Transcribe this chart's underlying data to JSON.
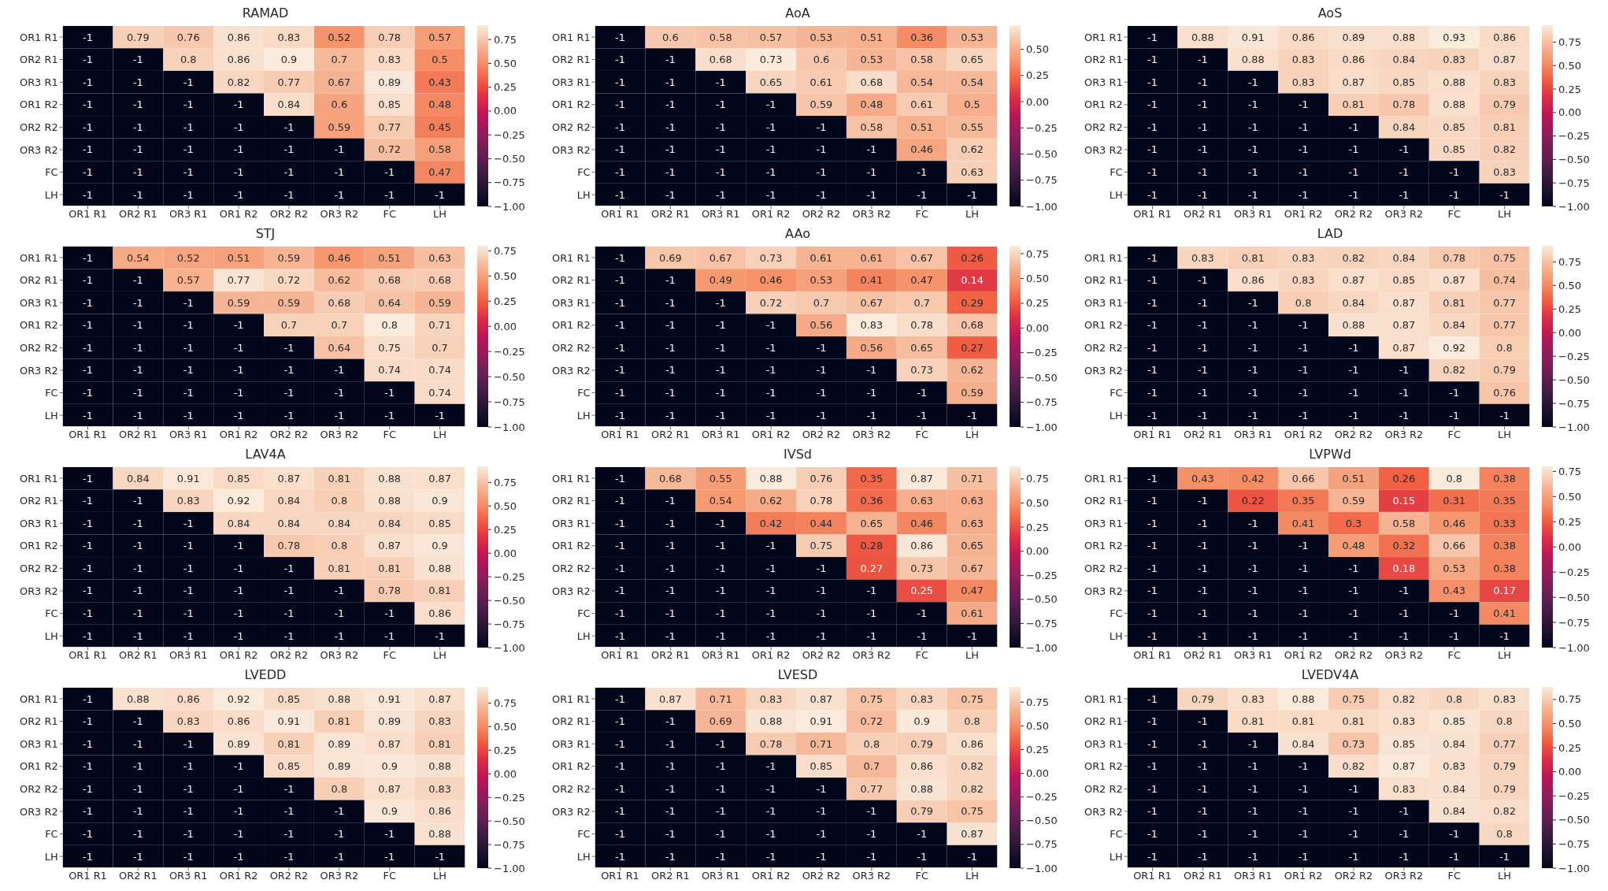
{
  "chart_data": [
    {
      "type": "heatmap",
      "data_labels": true,
      "title": "RAMAD",
      "categories": [
        "OR1 R1",
        "OR2 R1",
        "OR3 R1",
        "OR1 R2",
        "OR2 R2",
        "OR3 R2",
        "FC",
        "LH"
      ],
      "y_categories": [
        "OR1 R1",
        "OR2 R1",
        "OR3 R1",
        "OR1 R2",
        "OR2 R2",
        "OR3 R2",
        "FC",
        "LH"
      ],
      "clim": [
        -1,
        0.9
      ],
      "cticks": [
        {
          "value": -1,
          "label": "−1.00"
        },
        {
          "value": -0.75,
          "label": "−0.75"
        },
        {
          "value": -0.5,
          "label": "−0.50"
        },
        {
          "value": -0.25,
          "label": "−0.25"
        },
        {
          "value": 0,
          "label": "0.00"
        },
        {
          "value": 0.25,
          "label": "0.25"
        },
        {
          "value": 0.5,
          "label": "0.50"
        },
        {
          "value": 0.75,
          "label": "0.75"
        }
      ],
      "cells": [
        [
          -1,
          0.79,
          0.76,
          0.86,
          0.83,
          0.52,
          0.78,
          0.57
        ],
        [
          -1,
          -1,
          0.8,
          0.86,
          0.9,
          0.7,
          0.83,
          0.5
        ],
        [
          -1,
          -1,
          -1,
          0.82,
          0.77,
          0.67,
          0.89,
          0.43
        ],
        [
          -1,
          -1,
          -1,
          -1,
          0.84,
          0.6,
          0.85,
          0.48
        ],
        [
          -1,
          -1,
          -1,
          -1,
          -1,
          0.59,
          0.77,
          0.45
        ],
        [
          -1,
          -1,
          -1,
          -1,
          -1,
          -1,
          0.72,
          0.58
        ],
        [
          -1,
          -1,
          -1,
          -1,
          -1,
          -1,
          -1,
          0.47
        ],
        [
          -1,
          -1,
          -1,
          -1,
          -1,
          -1,
          -1,
          -1
        ]
      ]
    },
    {
      "type": "heatmap",
      "data_labels": true,
      "title": "AoA",
      "categories": [
        "OR1 R1",
        "OR2 R1",
        "OR3 R1",
        "OR1 R2",
        "OR2 R2",
        "OR3 R2",
        "FC",
        "LH"
      ],
      "y_categories": [
        "OR1 R1",
        "OR2 R1",
        "OR3 R1",
        "OR1 R2",
        "OR2 R2",
        "OR3 R2",
        "FC",
        "LH"
      ],
      "clim": [
        -1,
        0.73
      ],
      "cticks": [
        {
          "value": -1,
          "label": "−1.00"
        },
        {
          "value": -0.75,
          "label": "−0.75"
        },
        {
          "value": -0.5,
          "label": "−0.50"
        },
        {
          "value": -0.25,
          "label": "−0.25"
        },
        {
          "value": 0,
          "label": "0.00"
        },
        {
          "value": 0.25,
          "label": "0.25"
        },
        {
          "value": 0.5,
          "label": "0.50"
        }
      ],
      "cells": [
        [
          -1,
          0.6,
          0.58,
          0.57,
          0.53,
          0.51,
          0.36,
          0.53
        ],
        [
          -1,
          -1,
          0.68,
          0.73,
          0.6,
          0.53,
          0.58,
          0.65
        ],
        [
          -1,
          -1,
          -1,
          0.65,
          0.61,
          0.68,
          0.54,
          0.54
        ],
        [
          -1,
          -1,
          -1,
          -1,
          0.59,
          0.48,
          0.61,
          0.5
        ],
        [
          -1,
          -1,
          -1,
          -1,
          -1,
          0.58,
          0.51,
          0.55
        ],
        [
          -1,
          -1,
          -1,
          -1,
          -1,
          -1,
          0.46,
          0.62
        ],
        [
          -1,
          -1,
          -1,
          -1,
          -1,
          -1,
          -1,
          0.63
        ],
        [
          -1,
          -1,
          -1,
          -1,
          -1,
          -1,
          -1,
          -1
        ]
      ]
    },
    {
      "type": "heatmap",
      "data_labels": true,
      "title": "AoS",
      "categories": [
        "OR1 R1",
        "OR2 R1",
        "OR3 R1",
        "OR1 R2",
        "OR2 R2",
        "OR3 R2",
        "FC",
        "LH"
      ],
      "y_categories": [
        "OR1 R1",
        "OR2 R1",
        "OR3 R1",
        "OR1 R2",
        "OR2 R2",
        "OR3 R2",
        "FC",
        "LH"
      ],
      "clim": [
        -1,
        0.93
      ],
      "cticks": [
        {
          "value": -1,
          "label": "−1.00"
        },
        {
          "value": -0.75,
          "label": "−0.75"
        },
        {
          "value": -0.5,
          "label": "−0.50"
        },
        {
          "value": -0.25,
          "label": "−0.25"
        },
        {
          "value": 0,
          "label": "0.00"
        },
        {
          "value": 0.25,
          "label": "0.25"
        },
        {
          "value": 0.5,
          "label": "0.50"
        },
        {
          "value": 0.75,
          "label": "0.75"
        }
      ],
      "cells": [
        [
          -1,
          0.88,
          0.91,
          0.86,
          0.89,
          0.88,
          0.93,
          0.86
        ],
        [
          -1,
          -1,
          0.88,
          0.83,
          0.86,
          0.84,
          0.83,
          0.87
        ],
        [
          -1,
          -1,
          -1,
          0.83,
          0.87,
          0.85,
          0.88,
          0.83
        ],
        [
          -1,
          -1,
          -1,
          -1,
          0.81,
          0.78,
          0.88,
          0.79
        ],
        [
          -1,
          -1,
          -1,
          -1,
          -1,
          0.84,
          0.85,
          0.81
        ],
        [
          -1,
          -1,
          -1,
          -1,
          -1,
          -1,
          0.85,
          0.82
        ],
        [
          -1,
          -1,
          -1,
          -1,
          -1,
          -1,
          -1,
          0.83
        ],
        [
          -1,
          -1,
          -1,
          -1,
          -1,
          -1,
          -1,
          -1
        ]
      ]
    },
    {
      "type": "heatmap",
      "data_labels": true,
      "title": "STJ",
      "categories": [
        "OR1 R1",
        "OR2 R1",
        "OR3 R1",
        "OR1 R2",
        "OR2 R2",
        "OR3 R2",
        "FC",
        "LH"
      ],
      "y_categories": [
        "OR1 R1",
        "OR2 R1",
        "OR3 R1",
        "OR1 R2",
        "OR2 R2",
        "OR3 R2",
        "FC",
        "LH"
      ],
      "clim": [
        -1,
        0.8
      ],
      "cticks": [
        {
          "value": -1,
          "label": "−1.00"
        },
        {
          "value": -0.75,
          "label": "−0.75"
        },
        {
          "value": -0.5,
          "label": "−0.50"
        },
        {
          "value": -0.25,
          "label": "−0.25"
        },
        {
          "value": 0,
          "label": "0.00"
        },
        {
          "value": 0.25,
          "label": "0.25"
        },
        {
          "value": 0.5,
          "label": "0.50"
        },
        {
          "value": 0.75,
          "label": "0.75"
        }
      ],
      "cells": [
        [
          -1,
          0.54,
          0.52,
          0.51,
          0.59,
          0.46,
          0.51,
          0.63
        ],
        [
          -1,
          -1,
          0.57,
          0.77,
          0.72,
          0.62,
          0.68,
          0.68
        ],
        [
          -1,
          -1,
          -1,
          0.59,
          0.59,
          0.68,
          0.64,
          0.59
        ],
        [
          -1,
          -1,
          -1,
          -1,
          0.7,
          0.7,
          0.8,
          0.71
        ],
        [
          -1,
          -1,
          -1,
          -1,
          -1,
          0.64,
          0.75,
          0.7
        ],
        [
          -1,
          -1,
          -1,
          -1,
          -1,
          -1,
          0.74,
          0.74
        ],
        [
          -1,
          -1,
          -1,
          -1,
          -1,
          -1,
          -1,
          0.74
        ],
        [
          -1,
          -1,
          -1,
          -1,
          -1,
          -1,
          -1,
          -1
        ]
      ]
    },
    {
      "type": "heatmap",
      "data_labels": true,
      "title": "AAo",
      "categories": [
        "OR1 R1",
        "OR2 R1",
        "OR3 R1",
        "OR1 R2",
        "OR2 R2",
        "OR3 R2",
        "FC",
        "LH"
      ],
      "y_categories": [
        "OR1 R1",
        "OR2 R1",
        "OR3 R1",
        "OR1 R2",
        "OR2 R2",
        "OR3 R2",
        "FC",
        "LH"
      ],
      "clim": [
        -1,
        0.83
      ],
      "cticks": [
        {
          "value": -1,
          "label": "−1.00"
        },
        {
          "value": -0.75,
          "label": "−0.75"
        },
        {
          "value": -0.5,
          "label": "−0.50"
        },
        {
          "value": -0.25,
          "label": "−0.25"
        },
        {
          "value": 0,
          "label": "0.00"
        },
        {
          "value": 0.25,
          "label": "0.25"
        },
        {
          "value": 0.5,
          "label": "0.50"
        },
        {
          "value": 0.75,
          "label": "0.75"
        }
      ],
      "cells": [
        [
          -1,
          0.69,
          0.67,
          0.73,
          0.61,
          0.61,
          0.67,
          0.26
        ],
        [
          -1,
          -1,
          0.49,
          0.46,
          0.53,
          0.41,
          0.47,
          0.14
        ],
        [
          -1,
          -1,
          -1,
          0.72,
          0.7,
          0.67,
          0.7,
          0.29
        ],
        [
          -1,
          -1,
          -1,
          -1,
          0.56,
          0.83,
          0.78,
          0.68
        ],
        [
          -1,
          -1,
          -1,
          -1,
          -1,
          0.56,
          0.65,
          0.27
        ],
        [
          -1,
          -1,
          -1,
          -1,
          -1,
          -1,
          0.73,
          0.62
        ],
        [
          -1,
          -1,
          -1,
          -1,
          -1,
          -1,
          -1,
          0.59
        ],
        [
          -1,
          -1,
          -1,
          -1,
          -1,
          -1,
          -1,
          -1
        ]
      ]
    },
    {
      "type": "heatmap",
      "data_labels": true,
      "title": "LAD",
      "categories": [
        "OR1 R1",
        "OR2 R1",
        "OR3 R1",
        "OR1 R2",
        "OR2 R2",
        "OR3 R2",
        "FC",
        "LH"
      ],
      "y_categories": [
        "OR1 R1",
        "OR2 R1",
        "OR3 R1",
        "OR1 R2",
        "OR2 R2",
        "OR3 R2",
        "FC",
        "LH"
      ],
      "clim": [
        -1,
        0.92
      ],
      "cticks": [
        {
          "value": -1,
          "label": "−1.00"
        },
        {
          "value": -0.75,
          "label": "−0.75"
        },
        {
          "value": -0.5,
          "label": "−0.50"
        },
        {
          "value": -0.25,
          "label": "−0.25"
        },
        {
          "value": 0,
          "label": "0.00"
        },
        {
          "value": 0.25,
          "label": "0.25"
        },
        {
          "value": 0.5,
          "label": "0.50"
        },
        {
          "value": 0.75,
          "label": "0.75"
        }
      ],
      "cells": [
        [
          -1,
          0.83,
          0.81,
          0.83,
          0.82,
          0.84,
          0.78,
          0.75
        ],
        [
          -1,
          -1,
          0.86,
          0.83,
          0.87,
          0.85,
          0.87,
          0.74
        ],
        [
          -1,
          -1,
          -1,
          0.8,
          0.84,
          0.87,
          0.81,
          0.77
        ],
        [
          -1,
          -1,
          -1,
          -1,
          0.88,
          0.87,
          0.84,
          0.77
        ],
        [
          -1,
          -1,
          -1,
          -1,
          -1,
          0.87,
          0.92,
          0.8
        ],
        [
          -1,
          -1,
          -1,
          -1,
          -1,
          -1,
          0.82,
          0.79
        ],
        [
          -1,
          -1,
          -1,
          -1,
          -1,
          -1,
          -1,
          0.76
        ],
        [
          -1,
          -1,
          -1,
          -1,
          -1,
          -1,
          -1,
          -1
        ]
      ]
    },
    {
      "type": "heatmap",
      "data_labels": true,
      "title": "LAV4A",
      "categories": [
        "OR1 R1",
        "OR2 R1",
        "OR3 R1",
        "OR1 R2",
        "OR2 R2",
        "OR3 R2",
        "FC",
        "LH"
      ],
      "y_categories": [
        "OR1 R1",
        "OR2 R1",
        "OR3 R1",
        "OR1 R2",
        "OR2 R2",
        "OR3 R2",
        "FC",
        "LH"
      ],
      "clim": [
        -1,
        0.92
      ],
      "cticks": [
        {
          "value": -1,
          "label": "−1.00"
        },
        {
          "value": -0.75,
          "label": "−0.75"
        },
        {
          "value": -0.5,
          "label": "−0.50"
        },
        {
          "value": -0.25,
          "label": "−0.25"
        },
        {
          "value": 0,
          "label": "0.00"
        },
        {
          "value": 0.25,
          "label": "0.25"
        },
        {
          "value": 0.5,
          "label": "0.50"
        },
        {
          "value": 0.75,
          "label": "0.75"
        }
      ],
      "cells": [
        [
          -1,
          0.84,
          0.91,
          0.85,
          0.87,
          0.81,
          0.88,
          0.87
        ],
        [
          -1,
          -1,
          0.83,
          0.92,
          0.84,
          0.8,
          0.88,
          0.9
        ],
        [
          -1,
          -1,
          -1,
          0.84,
          0.84,
          0.84,
          0.84,
          0.85
        ],
        [
          -1,
          -1,
          -1,
          -1,
          0.78,
          0.8,
          0.87,
          0.9
        ],
        [
          -1,
          -1,
          -1,
          -1,
          -1,
          0.81,
          0.81,
          0.88
        ],
        [
          -1,
          -1,
          -1,
          -1,
          -1,
          -1,
          0.78,
          0.81
        ],
        [
          -1,
          -1,
          -1,
          -1,
          -1,
          -1,
          -1,
          0.86
        ],
        [
          -1,
          -1,
          -1,
          -1,
          -1,
          -1,
          -1,
          -1
        ]
      ]
    },
    {
      "type": "heatmap",
      "data_labels": true,
      "title": "IVSd",
      "categories": [
        "OR1 R1",
        "OR2 R1",
        "OR3 R1",
        "OR1 R2",
        "OR2 R2",
        "OR3 R2",
        "FC",
        "LH"
      ],
      "y_categories": [
        "OR1 R1",
        "OR2 R1",
        "OR3 R1",
        "OR1 R2",
        "OR2 R2",
        "OR3 R2",
        "FC",
        "LH"
      ],
      "clim": [
        -1,
        0.88
      ],
      "cticks": [
        {
          "value": -1,
          "label": "−1.00"
        },
        {
          "value": -0.75,
          "label": "−0.75"
        },
        {
          "value": -0.5,
          "label": "−0.50"
        },
        {
          "value": -0.25,
          "label": "−0.25"
        },
        {
          "value": 0,
          "label": "0.00"
        },
        {
          "value": 0.25,
          "label": "0.25"
        },
        {
          "value": 0.5,
          "label": "0.50"
        },
        {
          "value": 0.75,
          "label": "0.75"
        }
      ],
      "cells": [
        [
          -1,
          0.68,
          0.55,
          0.88,
          0.76,
          0.35,
          0.87,
          0.71
        ],
        [
          -1,
          -1,
          0.54,
          0.62,
          0.78,
          0.36,
          0.63,
          0.63
        ],
        [
          -1,
          -1,
          -1,
          0.42,
          0.44,
          0.65,
          0.46,
          0.63
        ],
        [
          -1,
          -1,
          -1,
          -1,
          0.75,
          0.28,
          0.86,
          0.65
        ],
        [
          -1,
          -1,
          -1,
          -1,
          -1,
          0.27,
          0.73,
          0.67
        ],
        [
          -1,
          -1,
          -1,
          -1,
          -1,
          -1,
          0.25,
          0.47
        ],
        [
          -1,
          -1,
          -1,
          -1,
          -1,
          -1,
          -1,
          0.61
        ],
        [
          -1,
          -1,
          -1,
          -1,
          -1,
          -1,
          -1,
          -1
        ]
      ]
    },
    {
      "type": "heatmap",
      "data_labels": true,
      "title": "LVPWd",
      "categories": [
        "OR1 R1",
        "OR2 R1",
        "OR3 R1",
        "OR1 R2",
        "OR2 R2",
        "OR3 R2",
        "FC",
        "LH"
      ],
      "y_categories": [
        "OR1 R1",
        "OR2 R1",
        "OR3 R1",
        "OR1 R2",
        "OR2 R2",
        "OR3 R2",
        "FC",
        "LH"
      ],
      "clim": [
        -1,
        0.8
      ],
      "cticks": [
        {
          "value": -1,
          "label": "−1.00"
        },
        {
          "value": -0.75,
          "label": "−0.75"
        },
        {
          "value": -0.5,
          "label": "−0.50"
        },
        {
          "value": -0.25,
          "label": "−0.25"
        },
        {
          "value": 0,
          "label": "0.00"
        },
        {
          "value": 0.25,
          "label": "0.25"
        },
        {
          "value": 0.5,
          "label": "0.50"
        },
        {
          "value": 0.75,
          "label": "0.75"
        }
      ],
      "cells": [
        [
          -1,
          0.43,
          0.42,
          0.66,
          0.51,
          0.26,
          0.8,
          0.38
        ],
        [
          -1,
          -1,
          0.22,
          0.35,
          0.59,
          0.15,
          0.31,
          0.35
        ],
        [
          -1,
          -1,
          -1,
          0.41,
          0.3,
          0.58,
          0.46,
          0.33
        ],
        [
          -1,
          -1,
          -1,
          -1,
          0.48,
          0.32,
          0.66,
          0.38
        ],
        [
          -1,
          -1,
          -1,
          -1,
          -1,
          0.18,
          0.53,
          0.38
        ],
        [
          -1,
          -1,
          -1,
          -1,
          -1,
          -1,
          0.43,
          0.17
        ],
        [
          -1,
          -1,
          -1,
          -1,
          -1,
          -1,
          -1,
          0.41
        ],
        [
          -1,
          -1,
          -1,
          -1,
          -1,
          -1,
          -1,
          -1
        ]
      ]
    },
    {
      "type": "heatmap",
      "data_labels": true,
      "title": "LVEDD",
      "categories": [
        "OR1 R1",
        "OR2 R1",
        "OR3 R1",
        "OR1 R2",
        "OR2 R2",
        "OR3 R2",
        "FC",
        "LH"
      ],
      "y_categories": [
        "OR1 R1",
        "OR2 R1",
        "OR3 R1",
        "OR1 R2",
        "OR2 R2",
        "OR3 R2",
        "FC",
        "LH"
      ],
      "clim": [
        -1,
        0.92
      ],
      "cticks": [
        {
          "value": -1,
          "label": "−1.00"
        },
        {
          "value": -0.75,
          "label": "−0.75"
        },
        {
          "value": -0.5,
          "label": "−0.50"
        },
        {
          "value": -0.25,
          "label": "−0.25"
        },
        {
          "value": 0,
          "label": "0.00"
        },
        {
          "value": 0.25,
          "label": "0.25"
        },
        {
          "value": 0.5,
          "label": "0.50"
        },
        {
          "value": 0.75,
          "label": "0.75"
        }
      ],
      "cells": [
        [
          -1,
          0.88,
          0.86,
          0.92,
          0.85,
          0.88,
          0.91,
          0.87
        ],
        [
          -1,
          -1,
          0.83,
          0.86,
          0.91,
          0.81,
          0.89,
          0.83
        ],
        [
          -1,
          -1,
          -1,
          0.89,
          0.81,
          0.89,
          0.87,
          0.81
        ],
        [
          -1,
          -1,
          -1,
          -1,
          0.85,
          0.89,
          0.9,
          0.88
        ],
        [
          -1,
          -1,
          -1,
          -1,
          -1,
          0.8,
          0.87,
          0.83
        ],
        [
          -1,
          -1,
          -1,
          -1,
          -1,
          -1,
          0.9,
          0.86
        ],
        [
          -1,
          -1,
          -1,
          -1,
          -1,
          -1,
          -1,
          0.88
        ],
        [
          -1,
          -1,
          -1,
          -1,
          -1,
          -1,
          -1,
          -1
        ]
      ]
    },
    {
      "type": "heatmap",
      "data_labels": true,
      "title": "LVESD",
      "categories": [
        "OR1 R1",
        "OR2 R1",
        "OR3 R1",
        "OR1 R2",
        "OR2 R2",
        "OR3 R2",
        "FC",
        "LH"
      ],
      "y_categories": [
        "OR1 R1",
        "OR2 R1",
        "OR3 R1",
        "OR1 R2",
        "OR2 R2",
        "OR3 R2",
        "FC",
        "LH"
      ],
      "clim": [
        -1,
        0.91
      ],
      "cticks": [
        {
          "value": -1,
          "label": "−1.00"
        },
        {
          "value": -0.75,
          "label": "−0.75"
        },
        {
          "value": -0.5,
          "label": "−0.50"
        },
        {
          "value": -0.25,
          "label": "−0.25"
        },
        {
          "value": 0,
          "label": "0.00"
        },
        {
          "value": 0.25,
          "label": "0.25"
        },
        {
          "value": 0.5,
          "label": "0.50"
        },
        {
          "value": 0.75,
          "label": "0.75"
        }
      ],
      "cells": [
        [
          -1,
          0.87,
          0.71,
          0.83,
          0.87,
          0.75,
          0.83,
          0.75
        ],
        [
          -1,
          -1,
          0.69,
          0.88,
          0.91,
          0.72,
          0.9,
          0.8
        ],
        [
          -1,
          -1,
          -1,
          0.78,
          0.71,
          0.8,
          0.79,
          0.86
        ],
        [
          -1,
          -1,
          -1,
          -1,
          0.85,
          0.7,
          0.86,
          0.82
        ],
        [
          -1,
          -1,
          -1,
          -1,
          -1,
          0.77,
          0.88,
          0.82
        ],
        [
          -1,
          -1,
          -1,
          -1,
          -1,
          -1,
          0.79,
          0.75
        ],
        [
          -1,
          -1,
          -1,
          -1,
          -1,
          -1,
          -1,
          0.87
        ],
        [
          -1,
          -1,
          -1,
          -1,
          -1,
          -1,
          -1,
          -1
        ]
      ]
    },
    {
      "type": "heatmap",
      "data_labels": true,
      "title": "LVEDV4A",
      "categories": [
        "OR1 R1",
        "OR2 R1",
        "OR3 R1",
        "OR1 R2",
        "OR2 R2",
        "OR3 R2",
        "FC",
        "LH"
      ],
      "y_categories": [
        "OR1 R1",
        "OR2 R1",
        "OR3 R1",
        "OR1 R2",
        "OR2 R2",
        "OR3 R2",
        "FC",
        "LH"
      ],
      "clim": [
        -1,
        0.88
      ],
      "cticks": [
        {
          "value": -1,
          "label": "−1.00"
        },
        {
          "value": -0.75,
          "label": "−0.75"
        },
        {
          "value": -0.5,
          "label": "−0.50"
        },
        {
          "value": -0.25,
          "label": "−0.25"
        },
        {
          "value": 0,
          "label": "0.00"
        },
        {
          "value": 0.25,
          "label": "0.25"
        },
        {
          "value": 0.5,
          "label": "0.50"
        },
        {
          "value": 0.75,
          "label": "0.75"
        }
      ],
      "cells": [
        [
          -1,
          0.79,
          0.83,
          0.88,
          0.75,
          0.82,
          0.8,
          0.83
        ],
        [
          -1,
          -1,
          0.81,
          0.81,
          0.81,
          0.83,
          0.85,
          0.8
        ],
        [
          -1,
          -1,
          -1,
          0.84,
          0.73,
          0.85,
          0.84,
          0.77
        ],
        [
          -1,
          -1,
          -1,
          -1,
          0.82,
          0.87,
          0.83,
          0.79
        ],
        [
          -1,
          -1,
          -1,
          -1,
          -1,
          0.83,
          0.84,
          0.79
        ],
        [
          -1,
          -1,
          -1,
          -1,
          -1,
          -1,
          0.84,
          0.82
        ],
        [
          -1,
          -1,
          -1,
          -1,
          -1,
          -1,
          -1,
          0.8
        ],
        [
          -1,
          -1,
          -1,
          -1,
          -1,
          -1,
          -1,
          -1
        ]
      ]
    }
  ]
}
